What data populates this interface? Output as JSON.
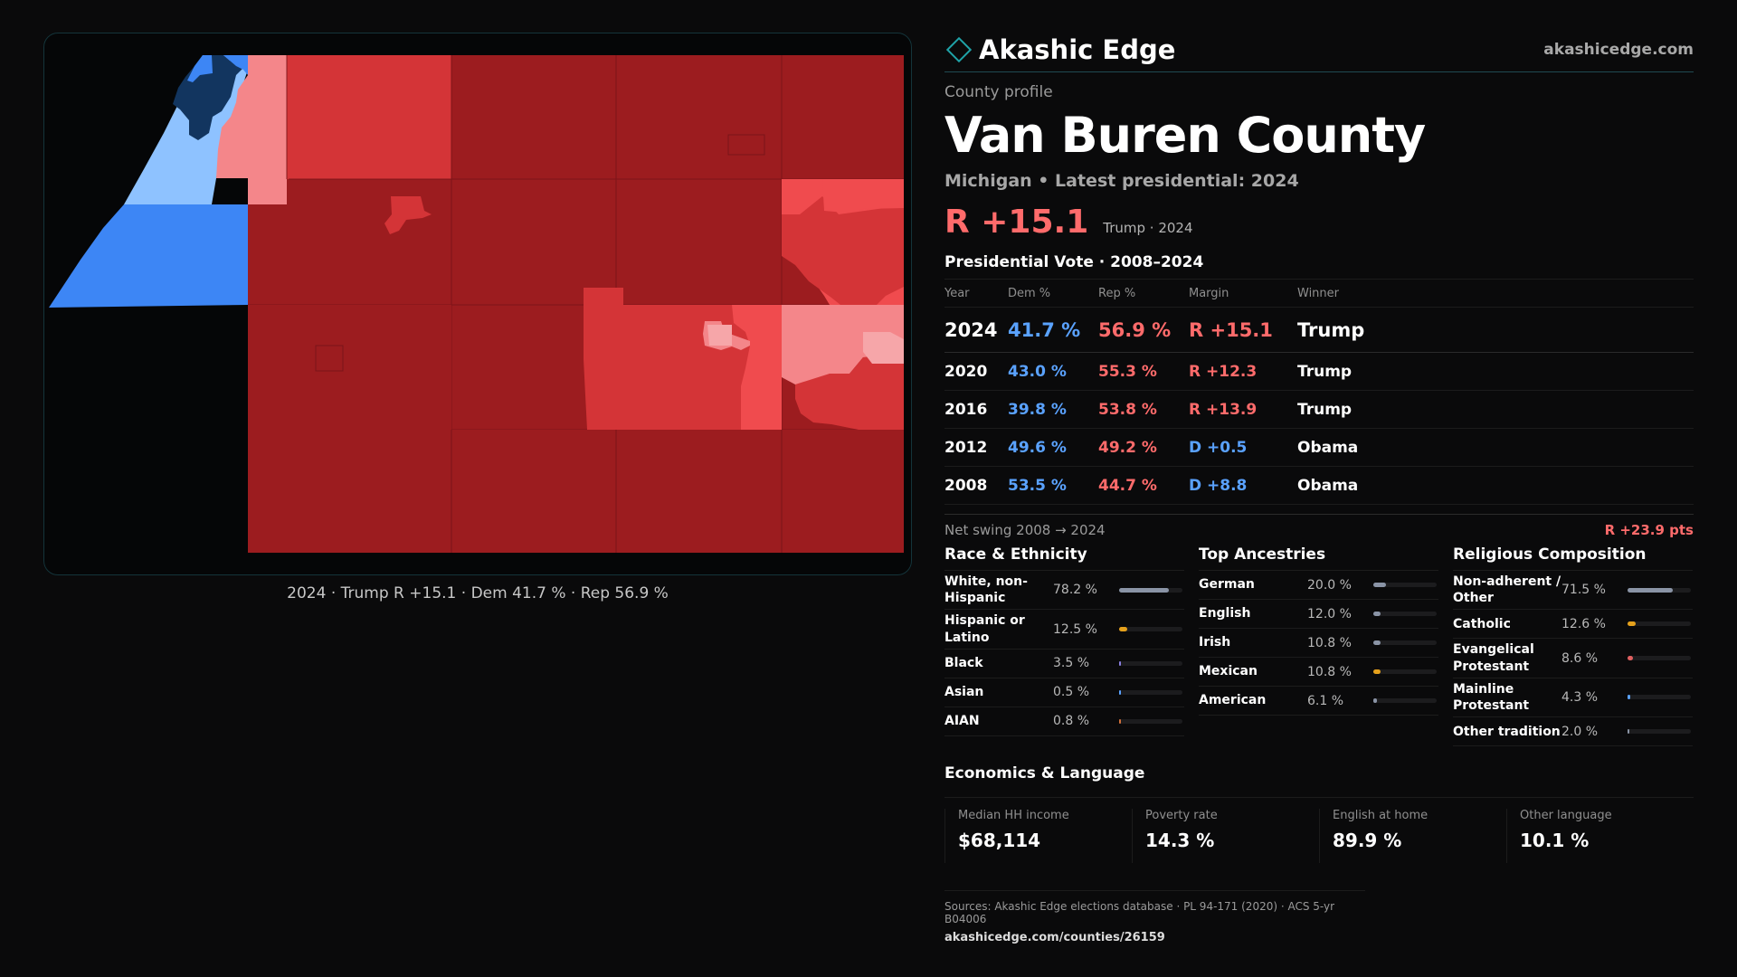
{
  "brand": {
    "name": "Akashic Edge",
    "url": "akashicedge.com"
  },
  "profile": {
    "eyebrow": "County profile",
    "county": "Van Buren County",
    "subline": "Michigan • Latest presidential: 2024",
    "headline_margin": "R +15.1",
    "headline_note": "Trump · 2024"
  },
  "map": {
    "caption": "2024 · Trump R +15.1 · Dem 41.7 % · Rep 56.9 %",
    "colors": {
      "background": "#050607",
      "safe_rep": "#9c1c1f",
      "likely_rep": "#d43437",
      "lean_rep": "#f04b4e",
      "tilt_rep": "#f4868a",
      "lean_dem": "#8ec2ff",
      "likely_dem": "#3d86f5",
      "safe_dem": "#12355f"
    }
  },
  "votes": {
    "title": "Presidential Vote · 2008–2024",
    "headers": {
      "year": "Year",
      "dem": "Dem %",
      "rep": "Rep %",
      "margin": "Margin",
      "winner": "Winner"
    },
    "rows": [
      {
        "year": "2024",
        "dem": "41.7 %",
        "rep": "56.9 %",
        "margin": "R +15.1",
        "winner": "Trump"
      },
      {
        "year": "2020",
        "dem": "43.0 %",
        "rep": "55.3 %",
        "margin": "R +12.3",
        "winner": "Trump"
      },
      {
        "year": "2016",
        "dem": "39.8 %",
        "rep": "53.8 %",
        "margin": "R +13.9",
        "winner": "Trump"
      },
      {
        "year": "2012",
        "dem": "49.6 %",
        "rep": "49.2 %",
        "margin": "D +0.5",
        "winner": "Obama"
      },
      {
        "year": "2008",
        "dem": "53.5 %",
        "rep": "44.7 %",
        "margin": "D +8.8",
        "winner": "Obama"
      }
    ],
    "swing_label": "Net swing 2008 → 2024",
    "swing_value": "R +23.9 pts"
  },
  "race": {
    "title": "Race & Ethnicity",
    "rows": [
      {
        "label": "White, non-Hispanic",
        "value": "78.2 %",
        "pct": 78.2,
        "color": "#8a94a6"
      },
      {
        "label": "Hispanic or Latino",
        "value": "12.5 %",
        "pct": 12.5,
        "color": "#e5a11c"
      },
      {
        "label": "Black",
        "value": "3.5 %",
        "pct": 3.5,
        "color": "#8a7fe0"
      },
      {
        "label": "Asian",
        "value": "0.5 %",
        "pct": 0.5,
        "color": "#5aa2ff"
      },
      {
        "label": "AIAN",
        "value": "0.8 %",
        "pct": 0.8,
        "color": "#d2703a"
      }
    ]
  },
  "ancestry": {
    "title": "Top Ancestries",
    "rows": [
      {
        "label": "German",
        "value": "20.0 %",
        "pct": 20.0,
        "color": "#8a94a6"
      },
      {
        "label": "English",
        "value": "12.0 %",
        "pct": 12.0,
        "color": "#8a94a6"
      },
      {
        "label": "Irish",
        "value": "10.8 %",
        "pct": 10.8,
        "color": "#8a94a6"
      },
      {
        "label": "Mexican",
        "value": "10.8 %",
        "pct": 10.8,
        "color": "#e5a11c"
      },
      {
        "label": "American",
        "value": "6.1 %",
        "pct": 6.1,
        "color": "#8a94a6"
      }
    ]
  },
  "religion": {
    "title": "Religious Composition",
    "rows": [
      {
        "label": "Non-adherent / Other",
        "value": "71.5 %",
        "pct": 71.5,
        "color": "#8a94a6"
      },
      {
        "label": "Catholic",
        "value": "12.6 %",
        "pct": 12.6,
        "color": "#e5a11c"
      },
      {
        "label": "Evangelical Protestant",
        "value": "8.6 %",
        "pct": 8.6,
        "color": "#e06060"
      },
      {
        "label": "Mainline Protestant",
        "value": "4.3 %",
        "pct": 4.3,
        "color": "#5aa2ff"
      },
      {
        "label": "Other tradition",
        "value": "2.0 %",
        "pct": 2.0,
        "color": "#8a94a6"
      }
    ]
  },
  "economics": {
    "title": "Economics & Language",
    "cards": [
      {
        "label": "Median HH income",
        "value": "$68,114"
      },
      {
        "label": "Poverty rate",
        "value": "14.3 %"
      },
      {
        "label": "English at home",
        "value": "89.9 %"
      },
      {
        "label": "Other language",
        "value": "10.1 %"
      }
    ]
  },
  "sources": {
    "text": "Sources: Akashic Edge elections database · PL 94-171 (2020) · ACS 5-yr B04006",
    "url": "akashicedge.com/counties/26159"
  }
}
